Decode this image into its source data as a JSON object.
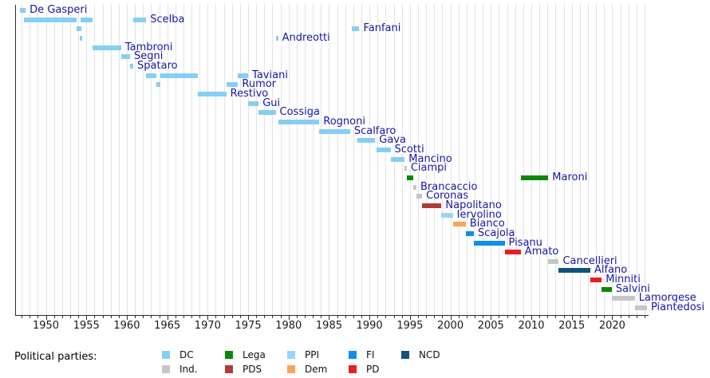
{
  "legend": {
    "label": "Political parties:",
    "items": [
      {
        "label": "DC",
        "party": "DC",
        "col": 0,
        "row": 0
      },
      {
        "label": "Ind.",
        "party": "Ind",
        "col": 0,
        "row": 1
      },
      {
        "label": "Lega",
        "party": "Lega",
        "col": 1,
        "row": 0
      },
      {
        "label": "PDS",
        "party": "PDS",
        "col": 1,
        "row": 1
      },
      {
        "label": "PPI",
        "party": "PPI",
        "col": 2,
        "row": 0
      },
      {
        "label": "Dem",
        "party": "Dem",
        "col": 2,
        "row": 1
      },
      {
        "label": "FI",
        "party": "FI",
        "col": 3,
        "row": 0
      },
      {
        "label": "PD",
        "party": "PD",
        "col": 3,
        "row": 1
      },
      {
        "label": "NCD",
        "party": "NCD",
        "col": 4,
        "row": 0
      }
    ]
  },
  "chart_data": {
    "type": "bar",
    "subtype": "gantt-timeline",
    "description": "Timeline of Italian ministers' terms in office, one row per minister, bars colored by political party",
    "x_axis": {
      "range": [
        1946.2,
        2024.3
      ],
      "major_ticks": [
        1950,
        1955,
        1960,
        1965,
        1970,
        1975,
        1980,
        1985,
        1990,
        1995,
        2000,
        2005,
        2010,
        2015,
        2020
      ],
      "minor_tick_interval": 1,
      "gridline_interval": 1,
      "grid": true
    },
    "legend_position": "bottom",
    "party_colors": {
      "DC": "#87cef3",
      "Ind": "#c6c6c6",
      "Lega": "#098909",
      "PDS": "#b03a3a",
      "PPI": "#99d5f7",
      "Dem": "#f6a45e",
      "FI": "#0e8dee",
      "PD": "#ea1c25",
      "NCD": "#11537a"
    },
    "ministers": [
      {
        "name": "De Gasperi",
        "party": "DC",
        "terms": [
          [
            1946.8,
            1947.5
          ]
        ]
      },
      {
        "name": "Scelba",
        "party": "DC",
        "terms": [
          [
            1947.3,
            1953.8
          ],
          [
            1954.3,
            1955.8
          ],
          [
            1960.8,
            1962.4
          ]
        ]
      },
      {
        "name": "Fanfani",
        "party": "DC",
        "terms": [
          [
            1953.8,
            1954.4
          ],
          [
            1987.8,
            1988.75
          ]
        ]
      },
      {
        "name": "Andreotti",
        "party": "DC",
        "terms": [
          [
            1954.15,
            1954.45
          ],
          [
            1978.4,
            1978.7
          ]
        ]
      },
      {
        "name": "Tambroni",
        "party": "DC",
        "terms": [
          [
            1955.8,
            1959.3
          ]
        ]
      },
      {
        "name": "Segni",
        "party": "DC",
        "terms": [
          [
            1959.3,
            1960.4
          ]
        ]
      },
      {
        "name": "Spataro",
        "party": "DC",
        "terms": [
          [
            1960.4,
            1960.8
          ]
        ]
      },
      {
        "name": "Taviani",
        "party": "DC",
        "terms": [
          [
            1962.4,
            1963.7
          ],
          [
            1964.1,
            1968.8
          ],
          [
            1973.75,
            1975.0
          ]
        ]
      },
      {
        "name": "Rumor",
        "party": "DC",
        "terms": [
          [
            1963.7,
            1964.1
          ],
          [
            1972.3,
            1973.75
          ]
        ]
      },
      {
        "name": "Restivo",
        "party": "DC",
        "terms": [
          [
            1968.8,
            1972.3
          ]
        ]
      },
      {
        "name": "Gui",
        "party": "DC",
        "terms": [
          [
            1975.0,
            1976.3
          ]
        ]
      },
      {
        "name": "Cossiga",
        "party": "DC",
        "terms": [
          [
            1976.3,
            1978.4
          ]
        ]
      },
      {
        "name": "Rognoni",
        "party": "DC",
        "terms": [
          [
            1978.7,
            1983.8
          ]
        ]
      },
      {
        "name": "Scalfaro",
        "party": "DC",
        "terms": [
          [
            1983.8,
            1987.6
          ]
        ]
      },
      {
        "name": "Gava",
        "party": "DC",
        "terms": [
          [
            1988.55,
            1990.7
          ]
        ]
      },
      {
        "name": "Scotti",
        "party": "DC",
        "terms": [
          [
            1990.9,
            1992.6
          ]
        ]
      },
      {
        "name": "Mancino",
        "party": "DC",
        "terms": [
          [
            1992.6,
            1994.35
          ]
        ]
      },
      {
        "name": "Ciampi",
        "party": "Ind",
        "terms": [
          [
            1994.35,
            1994.6
          ]
        ]
      },
      {
        "name": "Maroni",
        "party": "Lega",
        "terms": [
          [
            1994.6,
            1995.4
          ],
          [
            2008.7,
            2012.1
          ]
        ]
      },
      {
        "name": "Brancaccio",
        "party": "Ind",
        "terms": [
          [
            1995.4,
            1995.8
          ]
        ]
      },
      {
        "name": "Coronas",
        "party": "Ind",
        "terms": [
          [
            1995.8,
            1996.5
          ]
        ]
      },
      {
        "name": "Napolitano",
        "party": "PDS",
        "terms": [
          [
            1996.5,
            1998.9
          ]
        ]
      },
      {
        "name": "Iervolino",
        "party": "PPI",
        "terms": [
          [
            1998.9,
            2000.3
          ]
        ]
      },
      {
        "name": "Bianco",
        "party": "Dem",
        "terms": [
          [
            2000.3,
            2001.9
          ]
        ]
      },
      {
        "name": "Scajola",
        "party": "FI",
        "terms": [
          [
            2001.9,
            2002.9
          ]
        ]
      },
      {
        "name": "Pisanu",
        "party": "FI",
        "terms": [
          [
            2002.9,
            2006.7
          ]
        ]
      },
      {
        "name": "Amato",
        "party": "PD",
        "terms": [
          [
            2006.7,
            2008.7
          ]
        ]
      },
      {
        "name": "Cancellieri",
        "party": "Ind",
        "terms": [
          [
            2012.1,
            2013.4
          ]
        ]
      },
      {
        "name": "Alfano",
        "party": "NCD",
        "terms": [
          [
            2013.4,
            2017.3
          ]
        ]
      },
      {
        "name": "Minniti",
        "party": "PD",
        "terms": [
          [
            2017.3,
            2018.7
          ]
        ]
      },
      {
        "name": "Salvini",
        "party": "Lega",
        "terms": [
          [
            2018.7,
            2019.95
          ]
        ]
      },
      {
        "name": "Lamorgese",
        "party": "Ind",
        "terms": [
          [
            2019.95,
            2022.8
          ]
        ]
      },
      {
        "name": "Piantedosi",
        "party": "Ind",
        "terms": [
          [
            2022.8,
            2024.3
          ]
        ]
      }
    ]
  }
}
